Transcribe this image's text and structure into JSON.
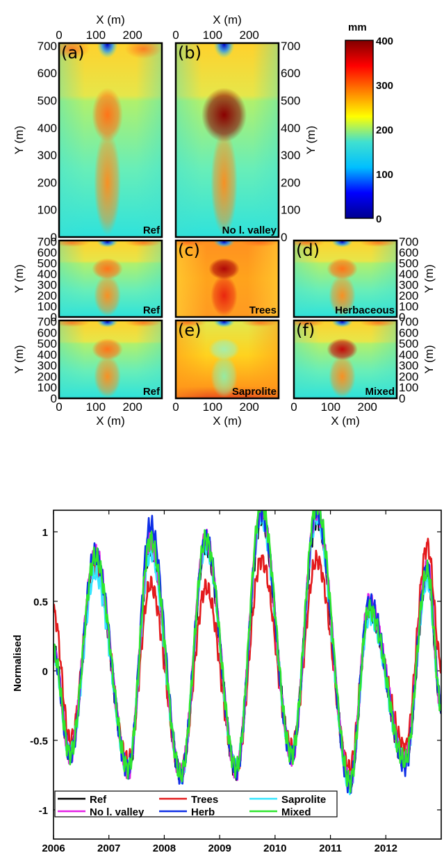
{
  "chart_data": [
    {
      "type": "heatmap",
      "description_panels": [
        {
          "id": "a",
          "letter": "(a)",
          "label": "Ref"
        },
        {
          "id": "b",
          "letter": "(b)",
          "label": "No l. valley"
        },
        {
          "id": "a2",
          "letter": "",
          "label": "Ref"
        },
        {
          "id": "c",
          "letter": "(c)",
          "label": "Trees"
        },
        {
          "id": "d",
          "letter": "(d)",
          "label": "Herbaceous"
        },
        {
          "id": "a3",
          "letter": "",
          "label": "Ref"
        },
        {
          "id": "e",
          "letter": "(e)",
          "label": "Saprolite"
        },
        {
          "id": "f",
          "letter": "(f)",
          "label": "Mixed"
        }
      ],
      "xlabel": "X (m)",
      "ylabel": "Y (m)",
      "xticks": [
        "0",
        "100",
        "200"
      ],
      "yticks": [
        "0",
        "100",
        "200",
        "300",
        "400",
        "500",
        "600",
        "700"
      ],
      "xlim": [
        0,
        280
      ],
      "ylim": [
        0,
        710
      ],
      "colorbar": {
        "unit": "mm",
        "ticks": [
          "0",
          "100",
          "200",
          "300",
          "400"
        ],
        "range": [
          0,
          400
        ],
        "colormap": [
          "#00008f",
          "#0000ff",
          "#00bfff",
          "#40e0d0",
          "#ffff00",
          "#ff8000",
          "#ff0000",
          "#800000"
        ]
      }
    },
    {
      "type": "line",
      "ylabel": "Normalised",
      "xlabel": "",
      "ylim": [
        -1.2,
        1.2
      ],
      "yticks": [
        "-1",
        "-0.5",
        "0",
        "0.5",
        "1"
      ],
      "xticks": [
        "2006",
        "2007",
        "2008",
        "2009",
        "2010",
        "2011",
        "2012"
      ],
      "xlim": [
        2006,
        2013
      ],
      "legend_position": "bottom-left",
      "peaks": [
        2006.75,
        2007.75,
        2008.75,
        2009.75,
        2010.75,
        2011.7,
        2012.75
      ],
      "troughs": [
        2006.3,
        2007.35,
        2008.3,
        2009.3,
        2010.3,
        2011.35,
        2012.35
      ],
      "series": [
        {
          "name": "Ref",
          "color": "#000000",
          "peak_values": [
            0.8,
            0.9,
            0.9,
            1.1,
            1.1,
            0.45,
            0.7
          ],
          "trough_values": [
            -0.6,
            -0.72,
            -0.75,
            -0.72,
            -0.6,
            -0.8,
            -0.65
          ]
        },
        {
          "name": "Trees",
          "color": "#e31a1c",
          "peak_values": [
            0.75,
            0.62,
            0.6,
            0.8,
            0.8,
            0.45,
            0.9
          ],
          "trough_values": [
            -0.5,
            -0.65,
            -0.72,
            -0.7,
            -0.55,
            -0.7,
            -0.55
          ]
        },
        {
          "name": "Saprolite",
          "color": "#33e6ff",
          "peak_values": [
            0.7,
            0.85,
            0.9,
            1.1,
            1.1,
            0.4,
            0.65
          ],
          "trough_values": [
            -0.6,
            -0.7,
            -0.75,
            -0.7,
            -0.6,
            -0.82,
            -0.65
          ]
        },
        {
          "name": "No l. valley",
          "color": "#e620e6",
          "peak_values": [
            0.85,
            0.95,
            0.95,
            1.15,
            1.15,
            0.5,
            0.75
          ],
          "trough_values": [
            -0.6,
            -0.72,
            -0.75,
            -0.72,
            -0.62,
            -0.8,
            -0.65
          ]
        },
        {
          "name": "Herb",
          "color": "#0d2ee6",
          "peak_values": [
            0.85,
            1.05,
            0.95,
            1.15,
            1.15,
            0.5,
            0.75
          ],
          "trough_values": [
            -0.62,
            -0.72,
            -0.75,
            -0.72,
            -0.62,
            -0.82,
            -0.68
          ]
        },
        {
          "name": "Mixed",
          "color": "#2ee62e",
          "peak_values": [
            0.82,
            0.95,
            0.95,
            1.2,
            1.2,
            0.45,
            0.72
          ],
          "trough_values": [
            -0.6,
            -0.7,
            -0.75,
            -0.7,
            -0.6,
            -0.8,
            -0.65
          ]
        }
      ]
    }
  ]
}
